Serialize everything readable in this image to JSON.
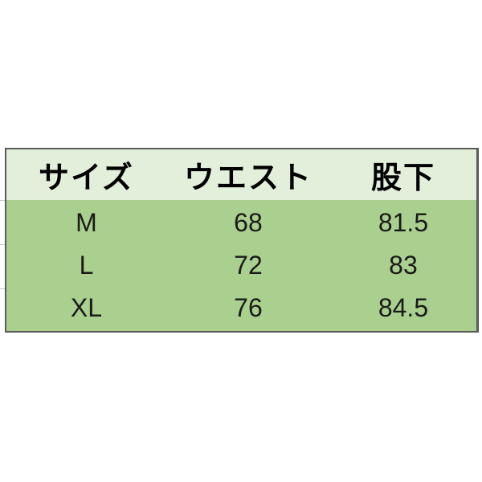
{
  "table": {
    "headers": [
      "サイズ",
      "ウエスト",
      "股下"
    ],
    "rows": [
      [
        "M",
        "68",
        "81.5"
      ],
      [
        "L",
        "72",
        "83"
      ],
      [
        "XL",
        "76",
        "84.5"
      ]
    ]
  },
  "colors": {
    "header_bg": "#e2efda",
    "body_bg": "#a9d08e",
    "border": "#5a5a5a"
  }
}
